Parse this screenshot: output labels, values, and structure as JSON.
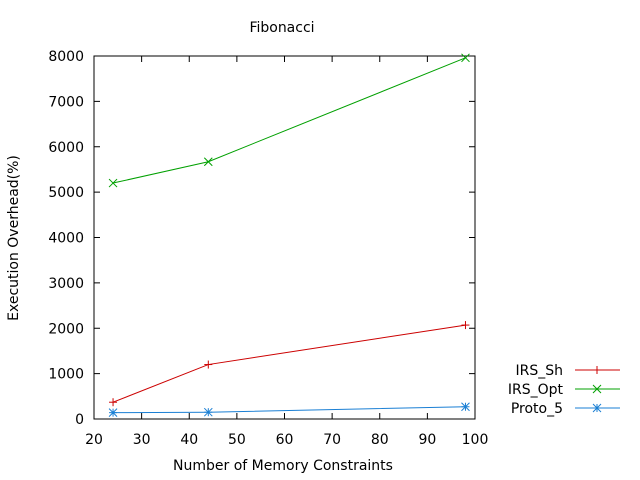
{
  "chart_data": {
    "type": "line",
    "title": "Fibonacci",
    "xlabel": "Number of Memory Constraints",
    "ylabel": "Execution Overhead(%)",
    "xlim": [
      20,
      100
    ],
    "ylim": [
      0,
      8000
    ],
    "xticks": [
      20,
      30,
      40,
      50,
      60,
      70,
      80,
      90,
      100
    ],
    "yticks": [
      0,
      1000,
      2000,
      3000,
      4000,
      5000,
      6000,
      7000,
      8000
    ],
    "grid": false,
    "legend_position": "outside-right-bottom",
    "series": [
      {
        "name": "IRS_Sh",
        "color": "#cc0000",
        "marker": "plus",
        "x": [
          24,
          44,
          98
        ],
        "y": [
          370,
          1200,
          2070
        ]
      },
      {
        "name": "IRS_Opt",
        "color": "#00a000",
        "marker": "cross",
        "x": [
          24,
          44,
          98
        ],
        "y": [
          5200,
          5670,
          7960
        ]
      },
      {
        "name": "Proto_5",
        "color": "#1a7fd4",
        "marker": "star",
        "x": [
          24,
          44,
          98
        ],
        "y": [
          140,
          150,
          270
        ]
      }
    ]
  }
}
